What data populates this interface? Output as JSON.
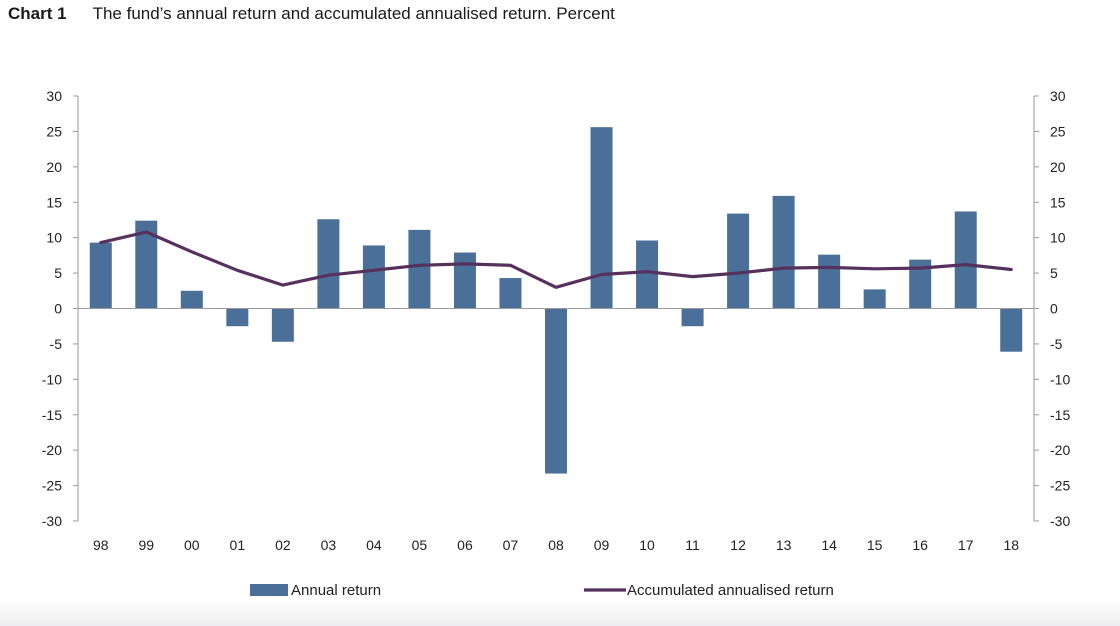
{
  "header": {
    "chart_number": "Chart 1",
    "title": "The fund’s annual return and accumulated annualised return. Percent"
  },
  "colors": {
    "bar": "#4a6f99",
    "line": "#56315e",
    "axis": "#9a9a9a"
  },
  "chart_data": {
    "type": "bar",
    "title": "The fund’s annual return and accumulated annualised return. Percent",
    "categories": [
      "98",
      "99",
      "00",
      "01",
      "02",
      "03",
      "04",
      "05",
      "06",
      "07",
      "08",
      "09",
      "10",
      "11",
      "12",
      "13",
      "14",
      "15",
      "16",
      "17",
      "18"
    ],
    "ylim": [
      -30,
      30
    ],
    "yticks": [
      "30",
      "25",
      "20",
      "15",
      "10",
      "5",
      "0",
      "-5",
      "-10",
      "-15",
      "-20",
      "-25",
      "-30"
    ],
    "grid": false,
    "legend_position": "bottom",
    "series": [
      {
        "name": "Annual return",
        "type": "bar",
        "values": [
          9.3,
          12.4,
          2.5,
          -2.5,
          -4.7,
          12.6,
          8.9,
          11.1,
          7.9,
          4.3,
          -23.3,
          25.6,
          9.6,
          -2.5,
          13.4,
          15.9,
          7.6,
          2.7,
          6.9,
          13.7,
          -6.1
        ]
      },
      {
        "name": "Accumulated annualised return",
        "type": "line",
        "values": [
          9.3,
          10.8,
          8.0,
          5.4,
          3.3,
          4.7,
          5.4,
          6.1,
          6.3,
          6.1,
          3.0,
          4.8,
          5.2,
          4.5,
          5.0,
          5.7,
          5.8,
          5.6,
          5.7,
          6.2,
          5.5
        ]
      }
    ]
  }
}
